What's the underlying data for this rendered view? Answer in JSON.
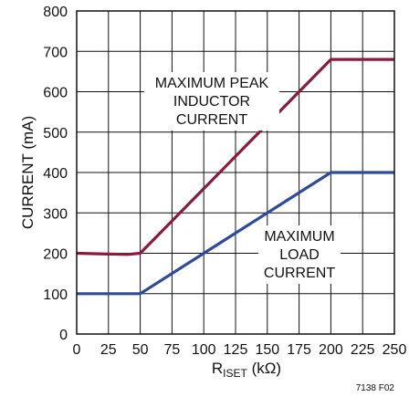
{
  "chart_data": {
    "type": "line",
    "xlabel_main": "R",
    "xlabel_sub": "ISET",
    "xlabel_unit": " (kΩ)",
    "ylabel": "CURRENT (mA)",
    "xlim": [
      0,
      250
    ],
    "ylim": [
      0,
      800
    ],
    "x_ticks": [
      0,
      25,
      50,
      75,
      100,
      125,
      150,
      175,
      200,
      225,
      250
    ],
    "y_ticks": [
      0,
      100,
      200,
      300,
      400,
      500,
      600,
      700,
      800
    ],
    "grid": true,
    "series": [
      {
        "name": "MAXIMUM PEAK INDUCTOR CURRENT",
        "color": "#8b1a3c",
        "points": [
          [
            0,
            200
          ],
          [
            25,
            198
          ],
          [
            40,
            197
          ],
          [
            50,
            200
          ],
          [
            200,
            680
          ],
          [
            250,
            680
          ]
        ]
      },
      {
        "name": "MAXIMUM LOAD CURRENT",
        "color": "#2e4a9a",
        "points": [
          [
            0,
            100
          ],
          [
            50,
            100
          ],
          [
            200,
            400
          ],
          [
            250,
            400
          ]
        ]
      }
    ],
    "annotations": [
      {
        "lines": [
          "MAXIMUM PEAK",
          "INDUCTOR",
          "CURRENT"
        ]
      },
      {
        "lines": [
          "MAXIMUM",
          "LOAD",
          "CURRENT"
        ]
      }
    ],
    "figure_id": "7138 F02"
  }
}
